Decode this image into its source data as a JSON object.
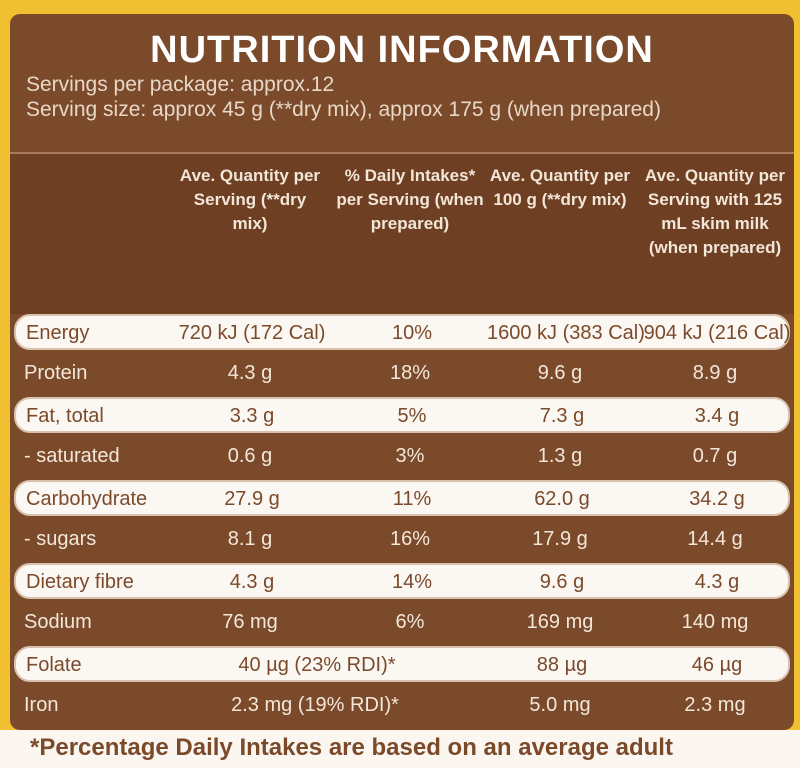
{
  "title": "NUTRITION INFORMATION",
  "servings": "Servings per package: approx.12",
  "serving_size": "Serving size: approx 45 g (**dry mix), approx 175 g (when prepared)",
  "table": {
    "headers": [
      "Ave. Quantity per Serving (**dry mix)",
      "% Daily Intakes* per Serving (when prepared)",
      "Ave. Quantity per 100 g (**dry mix)",
      "Ave. Quantity per Serving with 125 mL skim milk (when prepared)"
    ],
    "rows": [
      [
        "Energy",
        "720 kJ (172 Cal)",
        "10%",
        "1600 kJ (383 Cal)",
        "904 kJ (216 Cal)"
      ],
      [
        "Protein",
        "4.3 g",
        "18%",
        "9.6 g",
        "8.9 g"
      ],
      [
        "Fat, total",
        "3.3 g",
        "5%",
        "7.3 g",
        "3.4 g"
      ],
      [
        "- saturated",
        "0.6 g",
        "3%",
        "1.3 g",
        "0.7 g"
      ],
      [
        "Carbohydrate",
        "27.9 g",
        "11%",
        "62.0 g",
        "34.2 g"
      ],
      [
        "- sugars",
        "8.1 g",
        "16%",
        "17.9 g",
        "14.4 g"
      ],
      [
        "Dietary fibre",
        "4.3 g",
        "14%",
        "9.6 g",
        "4.3 g"
      ],
      [
        "Sodium",
        "76 mg",
        "6%",
        "169 mg",
        "140 mg"
      ],
      [
        "Folate",
        "40 µg (23% RDI)*",
        "88 µg",
        "46 µg"
      ],
      [
        "Iron",
        "2.3 mg (19% RDI)*",
        "5.0 mg",
        "2.3 mg"
      ]
    ]
  },
  "footnote": "*Percentage Daily Intakes are based on an average adult"
}
